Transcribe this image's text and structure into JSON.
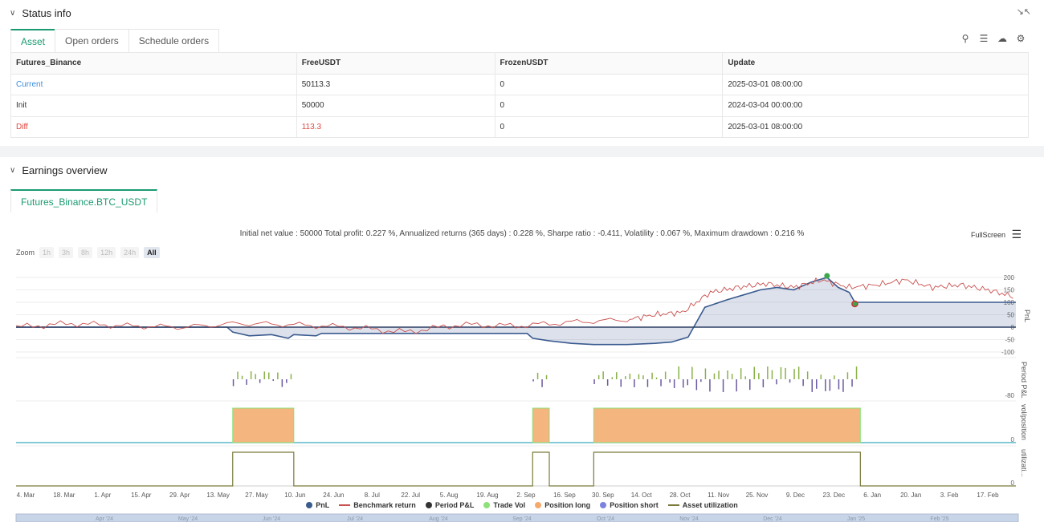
{
  "status": {
    "title": "Status info",
    "tabs": [
      "Asset",
      "Open orders",
      "Schedule orders"
    ],
    "table": {
      "headers": [
        "Futures_Binance",
        "FreeUSDT",
        "FrozenUSDT",
        "Update"
      ],
      "rows": [
        [
          "Current",
          "50113.3",
          "0",
          "2025-03-01 08:00:00"
        ],
        [
          "Init",
          "50000",
          "0",
          "2024-03-04 00:00:00"
        ],
        [
          "Diff",
          "113.3",
          "0",
          "2025-03-01 08:00:00"
        ]
      ]
    }
  },
  "earnings": {
    "title": "Earnings overview",
    "tab": "Futures_Binance.BTC_USDT",
    "summary": "Initial net value : 50000 Total profit: 0.227 %, Annualized returns (365 days) : 0.228 %, Sharpe ratio : -0.411, Volatility : 0.067 %, Maximum drawdown : 0.216 %",
    "fullscreen": "FullScreen",
    "zoom_label": "Zoom",
    "zoom_buttons": [
      "1h",
      "3h",
      "8h",
      "12h",
      "24h",
      "All"
    ],
    "legend": [
      "PnL",
      "Benchmark return",
      "Period P&L",
      "Trade Vol",
      "Position long",
      "Position short",
      "Asset utilization"
    ]
  },
  "chart_data": {
    "type": "line",
    "x_ticks": [
      "4. Mar",
      "18. Mar",
      "1. Apr",
      "15. Apr",
      "29. Apr",
      "13. May",
      "27. May",
      "10. Jun",
      "24. Jun",
      "8. Jul",
      "22. Jul",
      "5. Aug",
      "19. Aug",
      "2. Sep",
      "16. Sep",
      "30. Sep",
      "14. Oct",
      "28. Oct",
      "11. Nov",
      "25. Nov",
      "9. Dec",
      "23. Dec",
      "6. Jan",
      "20. Jan",
      "3. Feb",
      "17. Feb"
    ],
    "navigator_ticks": [
      "Apr '24",
      "May '24",
      "Jun '24",
      "Jul '24",
      "Aug '24",
      "Sep '24",
      "Oct '24",
      "Nov '24",
      "Dec '24",
      "Jan '25",
      "Feb '25"
    ],
    "pnl_axis": {
      "label": "PnL",
      "ticks": [
        "200",
        "150",
        "100",
        "50",
        "0",
        "-50",
        "-100"
      ]
    },
    "period_axis": {
      "label": "Period P&L",
      "ticks": [
        "-80"
      ]
    },
    "position_axis": {
      "label": "vol/position",
      "ticks": [
        "0"
      ]
    },
    "util_axis": {
      "label": "utilizati...",
      "ticks": [
        "0"
      ]
    },
    "pnl_points": [
      [
        0,
        0
      ],
      [
        20,
        0
      ],
      [
        38,
        0
      ],
      [
        39,
        -20
      ],
      [
        42,
        -35
      ],
      [
        46,
        -30
      ],
      [
        49,
        -45
      ],
      [
        50,
        -30
      ],
      [
        54,
        -35
      ],
      [
        55,
        -25
      ],
      [
        64,
        -25
      ],
      [
        92,
        -25
      ],
      [
        93,
        -45
      ],
      [
        96,
        -55
      ],
      [
        100,
        -65
      ],
      [
        104,
        -70
      ],
      [
        110,
        -70
      ],
      [
        115,
        -65
      ],
      [
        118,
        -60
      ],
      [
        121,
        -40
      ],
      [
        122,
        0
      ],
      [
        124,
        80
      ],
      [
        128,
        110
      ],
      [
        131,
        130
      ],
      [
        134,
        150
      ],
      [
        137,
        160
      ],
      [
        140,
        150
      ],
      [
        143,
        180
      ],
      [
        146,
        200
      ],
      [
        148,
        160
      ],
      [
        150,
        140
      ],
      [
        151,
        100
      ],
      [
        180,
        100
      ]
    ],
    "benchmark_points": [
      [
        0,
        0
      ],
      [
        10,
        15
      ],
      [
        20,
        5
      ],
      [
        30,
        0
      ],
      [
        40,
        15
      ],
      [
        50,
        10
      ],
      [
        60,
        0
      ],
      [
        70,
        -20
      ],
      [
        80,
        10
      ],
      [
        90,
        5
      ],
      [
        100,
        20
      ],
      [
        110,
        30
      ],
      [
        115,
        50
      ],
      [
        120,
        60
      ],
      [
        125,
        140
      ],
      [
        130,
        160
      ],
      [
        135,
        175
      ],
      [
        140,
        160
      ],
      [
        145,
        190
      ],
      [
        150,
        160
      ],
      [
        155,
        170
      ],
      [
        160,
        190
      ],
      [
        165,
        160
      ],
      [
        170,
        170
      ],
      [
        175,
        150
      ],
      [
        180,
        120
      ]
    ]
  }
}
